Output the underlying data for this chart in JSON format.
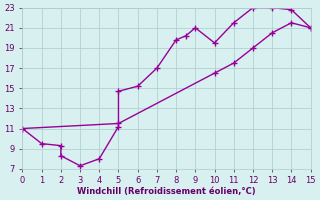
{
  "xlabel": "Windchill (Refroidissement éolien,°C)",
  "xlim": [
    0,
    15
  ],
  "ylim": [
    7,
    23
  ],
  "xticks": [
    0,
    1,
    2,
    3,
    4,
    5,
    6,
    7,
    8,
    9,
    10,
    11,
    12,
    13,
    14,
    15
  ],
  "yticks": [
    7,
    9,
    11,
    13,
    15,
    17,
    19,
    21,
    23
  ],
  "line1_x": [
    0,
    1,
    2,
    2,
    3,
    4,
    5,
    5,
    6,
    7,
    8,
    8.5,
    9,
    10,
    11,
    12,
    13,
    14,
    15
  ],
  "line1_y": [
    11,
    9.5,
    9.3,
    8.3,
    7.3,
    8.0,
    11.2,
    14.7,
    15.2,
    17.0,
    19.8,
    20.2,
    21.0,
    19.5,
    21.5,
    23.0,
    23.0,
    22.8,
    21.0
  ],
  "line2_x": [
    0,
    5,
    10,
    11,
    12,
    13,
    14,
    15
  ],
  "line2_y": [
    11,
    11.5,
    16.5,
    17.5,
    19.0,
    20.5,
    21.5,
    21.0
  ],
  "line_color": "#990099",
  "bg_color": "#d8f0f0",
  "grid_color": "#aacccc",
  "tick_color": "#660066",
  "label_color": "#660066",
  "line_width": 1.0,
  "marker": "+",
  "marker_size": 5,
  "marker_lw": 1.0
}
